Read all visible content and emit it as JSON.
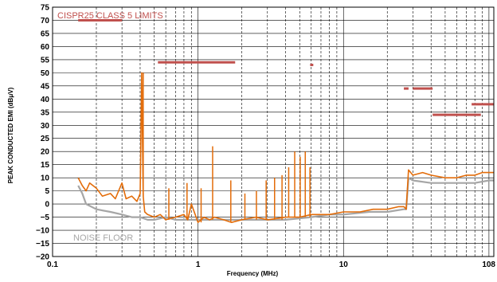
{
  "chart_data": {
    "type": "line",
    "title": "",
    "xlabel": "Frequency (MHz)",
    "ylabel": "PEAK CONDUCTED  EMI (dBμV)",
    "x_scale": "log",
    "xlim": [
      0.1,
      108
    ],
    "ylim": [
      -20,
      75
    ],
    "y_ticks": [
      75,
      70,
      65,
      60,
      55,
      50,
      45,
      40,
      35,
      30,
      25,
      20,
      15,
      10,
      5,
      0,
      -5,
      -10,
      -15,
      -20
    ],
    "x_tick_labels": [
      "0.1",
      "1",
      "10",
      "108"
    ],
    "x_tick_values": [
      0.1,
      1,
      10,
      108
    ],
    "grid": true,
    "annotations": [
      {
        "text": "CISPR25 CLASS 5 LIMITS",
        "color": "#c0504d"
      },
      {
        "text": "NOISE FLOOR",
        "color": "#a6a6a6"
      }
    ],
    "series": [
      {
        "name": "",
        "color": "#e36c09",
        "x": [
          0.15,
          0.16,
          0.17,
          0.18,
          0.2,
          0.22,
          0.25,
          0.27,
          0.3,
          0.32,
          0.35,
          0.38,
          0.4,
          0.41,
          0.42,
          0.43,
          0.45,
          0.5,
          0.55,
          0.6,
          0.7,
          0.8,
          0.85,
          0.9,
          1.0,
          1.1,
          1.2,
          1.3,
          1.5,
          1.7,
          2.0,
          2.5,
          3.0,
          4.0,
          5.0,
          6.0,
          8.0,
          10.0,
          13.0,
          16.0,
          20.0,
          24.0,
          26.0,
          27.0,
          28.0,
          30.0,
          35.0,
          40.0,
          50.0,
          60.0,
          70.0,
          80.0,
          90.0,
          100.0,
          108.0
        ],
        "y": [
          10,
          7,
          5,
          8,
          6,
          3,
          4,
          2,
          8,
          2,
          3,
          1,
          4,
          50,
          3,
          -3,
          -4,
          -5,
          -4,
          -6,
          -5,
          -4,
          -6,
          0,
          -7,
          -5,
          -6,
          -5,
          -6,
          -7,
          -6,
          -5,
          -6,
          -5,
          -5,
          -4,
          -4,
          -3,
          -3,
          -2,
          -2,
          -1,
          -1,
          -2,
          13,
          11,
          12,
          11,
          10,
          10,
          11,
          11,
          12,
          12,
          12
        ]
      },
      {
        "name": "",
        "color": "#a6a6a6",
        "x": [
          0.15,
          0.16,
          0.17,
          0.2,
          0.25,
          0.3,
          0.35,
          0.4,
          0.45,
          0.5,
          0.6,
          0.7,
          0.8,
          0.9,
          1.0,
          1.2,
          1.5,
          2.0,
          3.0,
          4.0,
          6.0,
          8.0,
          10.0,
          15.0,
          20.0,
          26.0,
          27.0,
          28.0,
          30.0,
          40.0,
          50.0,
          60.0,
          80.0,
          100.0,
          108.0
        ],
        "y": [
          7,
          4,
          0,
          -2,
          -3,
          -4,
          -5,
          -5,
          -6,
          -6,
          -5,
          -6,
          -6,
          -6,
          -6,
          -6,
          -6,
          -6,
          -6,
          -6,
          -5,
          -4,
          -4,
          -3,
          -3,
          -2,
          -2,
          10,
          9,
          8,
          8,
          8,
          8,
          9,
          9
        ]
      }
    ],
    "spurs": [
      {
        "x": 0.42,
        "y": 50
      },
      {
        "x": 0.63,
        "y": 6
      },
      {
        "x": 0.84,
        "y": 8
      },
      {
        "x": 1.05,
        "y": 6
      },
      {
        "x": 1.26,
        "y": 22
      },
      {
        "x": 1.68,
        "y": 9
      },
      {
        "x": 2.1,
        "y": 4
      },
      {
        "x": 2.52,
        "y": 5
      },
      {
        "x": 2.94,
        "y": 9
      },
      {
        "x": 3.36,
        "y": 10
      },
      {
        "x": 3.78,
        "y": 11
      },
      {
        "x": 4.2,
        "y": 14
      },
      {
        "x": 4.62,
        "y": 20
      },
      {
        "x": 5.04,
        "y": 18
      },
      {
        "x": 5.46,
        "y": 20
      },
      {
        "x": 5.88,
        "y": 14
      }
    ],
    "limits": [
      {
        "x1": 0.15,
        "x2": 0.3,
        "y": 70
      },
      {
        "x1": 0.53,
        "x2": 1.8,
        "y": 54
      },
      {
        "x1": 5.9,
        "x2": 6.2,
        "y": 53
      },
      {
        "x1": 26,
        "x2": 28,
        "y": 44
      },
      {
        "x1": 30,
        "x2": 41,
        "y": 44
      },
      {
        "x1": 41,
        "x2": 88,
        "y": 34
      },
      {
        "x1": 76,
        "x2": 108,
        "y": 38
      }
    ],
    "limit_color": "#c0504d"
  }
}
